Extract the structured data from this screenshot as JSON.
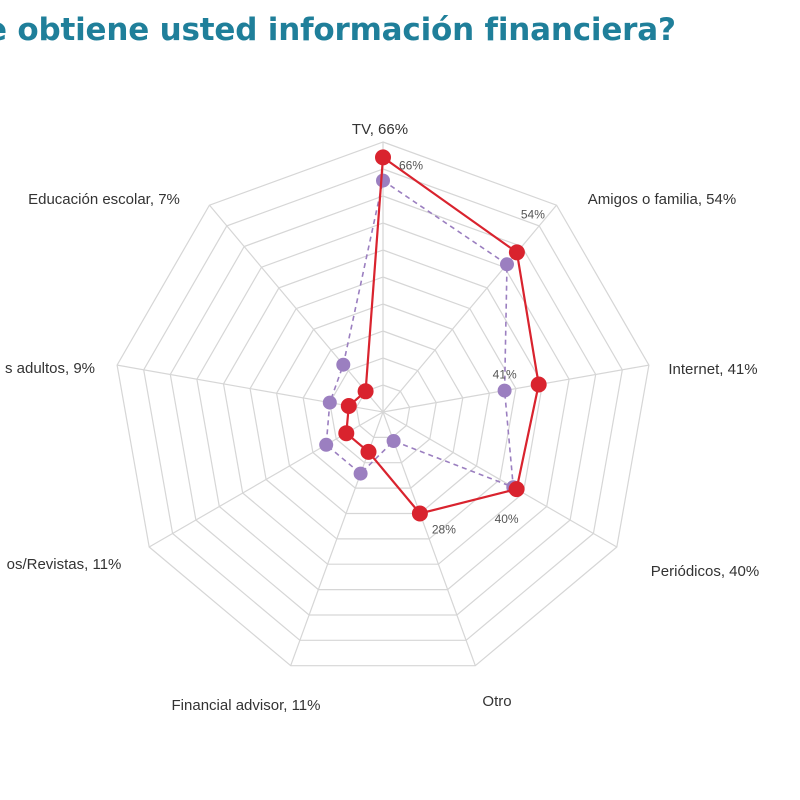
{
  "title": "e obtiene usted información financiera?",
  "chart_data": {
    "type": "radar",
    "title": "e obtiene usted información financiera?",
    "rmax": 70,
    "grid_rings": 10,
    "categories": [
      "TV, 66%",
      "Amigos o familia, 54%",
      "Internet, 41%",
      "Periódicos, 40%",
      "Otro",
      "Financial advisor, 11%",
      "os/Revistas, 11%",
      "s adultos, 9%",
      "Educación escolar, 7%"
    ],
    "series": [
      {
        "values": [
          66,
          54,
          41,
          40,
          28,
          11,
          11,
          9,
          7
        ],
        "color": "#d9232e",
        "style": "solid",
        "labels": [
          "66%",
          "54%",
          "41%",
          "40%",
          "28%",
          "",
          "",
          "",
          ""
        ]
      },
      {
        "values": [
          60,
          50,
          32,
          39,
          8,
          17,
          17,
          14,
          16
        ],
        "color": "#9b7fc0",
        "style": "dashed",
        "labels": [
          "",
          "",
          "",
          "",
          "",
          "",
          "",
          "",
          ""
        ]
      }
    ]
  }
}
